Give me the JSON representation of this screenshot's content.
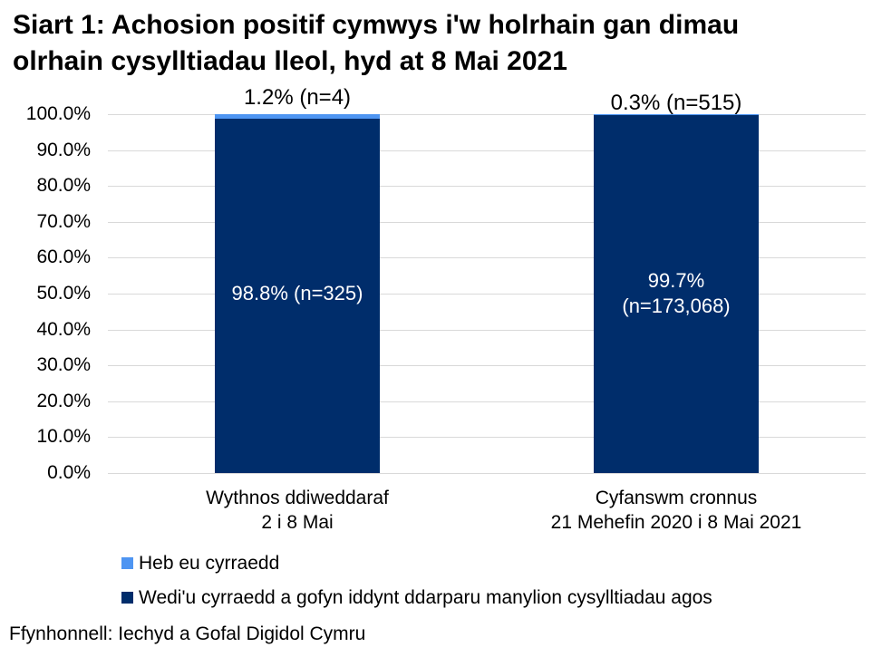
{
  "title": {
    "lines": [
      "Siart 1: Achosion positif cymwys i'w holrhain gan dimau",
      "olrhain cysylltiadau lleol, hyd at 8 Mai 2021"
    ]
  },
  "source": "Ffynhonnell: Iechyd a Gofal Digidol Cymru",
  "colors": {
    "not_reached": "#4E95F2",
    "reached": "#002D6B",
    "gridline": "#D9D9D9",
    "inside_label_text": "#FFFFFF"
  },
  "chart_data": {
    "type": "bar",
    "stacked": true,
    "grid": true,
    "legend_position": "bottom-left",
    "ylim": [
      0,
      100
    ],
    "y_ticks": [
      {
        "value": 100,
        "label": "100.0%"
      },
      {
        "value": 90,
        "label": "90.0%"
      },
      {
        "value": 80,
        "label": "80.0%"
      },
      {
        "value": 70,
        "label": "70.0%"
      },
      {
        "value": 60,
        "label": "60.0%"
      },
      {
        "value": 50,
        "label": "50.0%"
      },
      {
        "value": 40,
        "label": "40.0%"
      },
      {
        "value": 30,
        "label": "30.0%"
      },
      {
        "value": 20,
        "label": "20.0%"
      },
      {
        "value": 10,
        "label": "10.0%"
      },
      {
        "value": 0,
        "label": "0.0%"
      }
    ],
    "categories": [
      {
        "label_lines": [
          "Wythnos ddiweddaraf",
          "2 i 8 Mai"
        ]
      },
      {
        "label_lines": [
          "Cyfanswm cronnus",
          "21 Mehefin 2020 i 8 Mai 2021"
        ]
      }
    ],
    "series": [
      {
        "name": "Heb eu cyrraedd",
        "color_key": "not_reached",
        "values": [
          1.2,
          0.3
        ],
        "counts": [
          4,
          515
        ]
      },
      {
        "name": "Wedi'u cyrraedd a gofyn iddynt ddarparu manylion cysylltiadau agos",
        "color_key": "reached",
        "values": [
          98.8,
          99.7
        ],
        "counts": [
          325,
          173068
        ]
      }
    ],
    "bar_annotations": {
      "above": [
        "1.2% (n=4)",
        "0.3% (n=515)"
      ],
      "inside": [
        "98.8% (n=325)",
        "99.7%\n(n=173,068)"
      ]
    }
  }
}
